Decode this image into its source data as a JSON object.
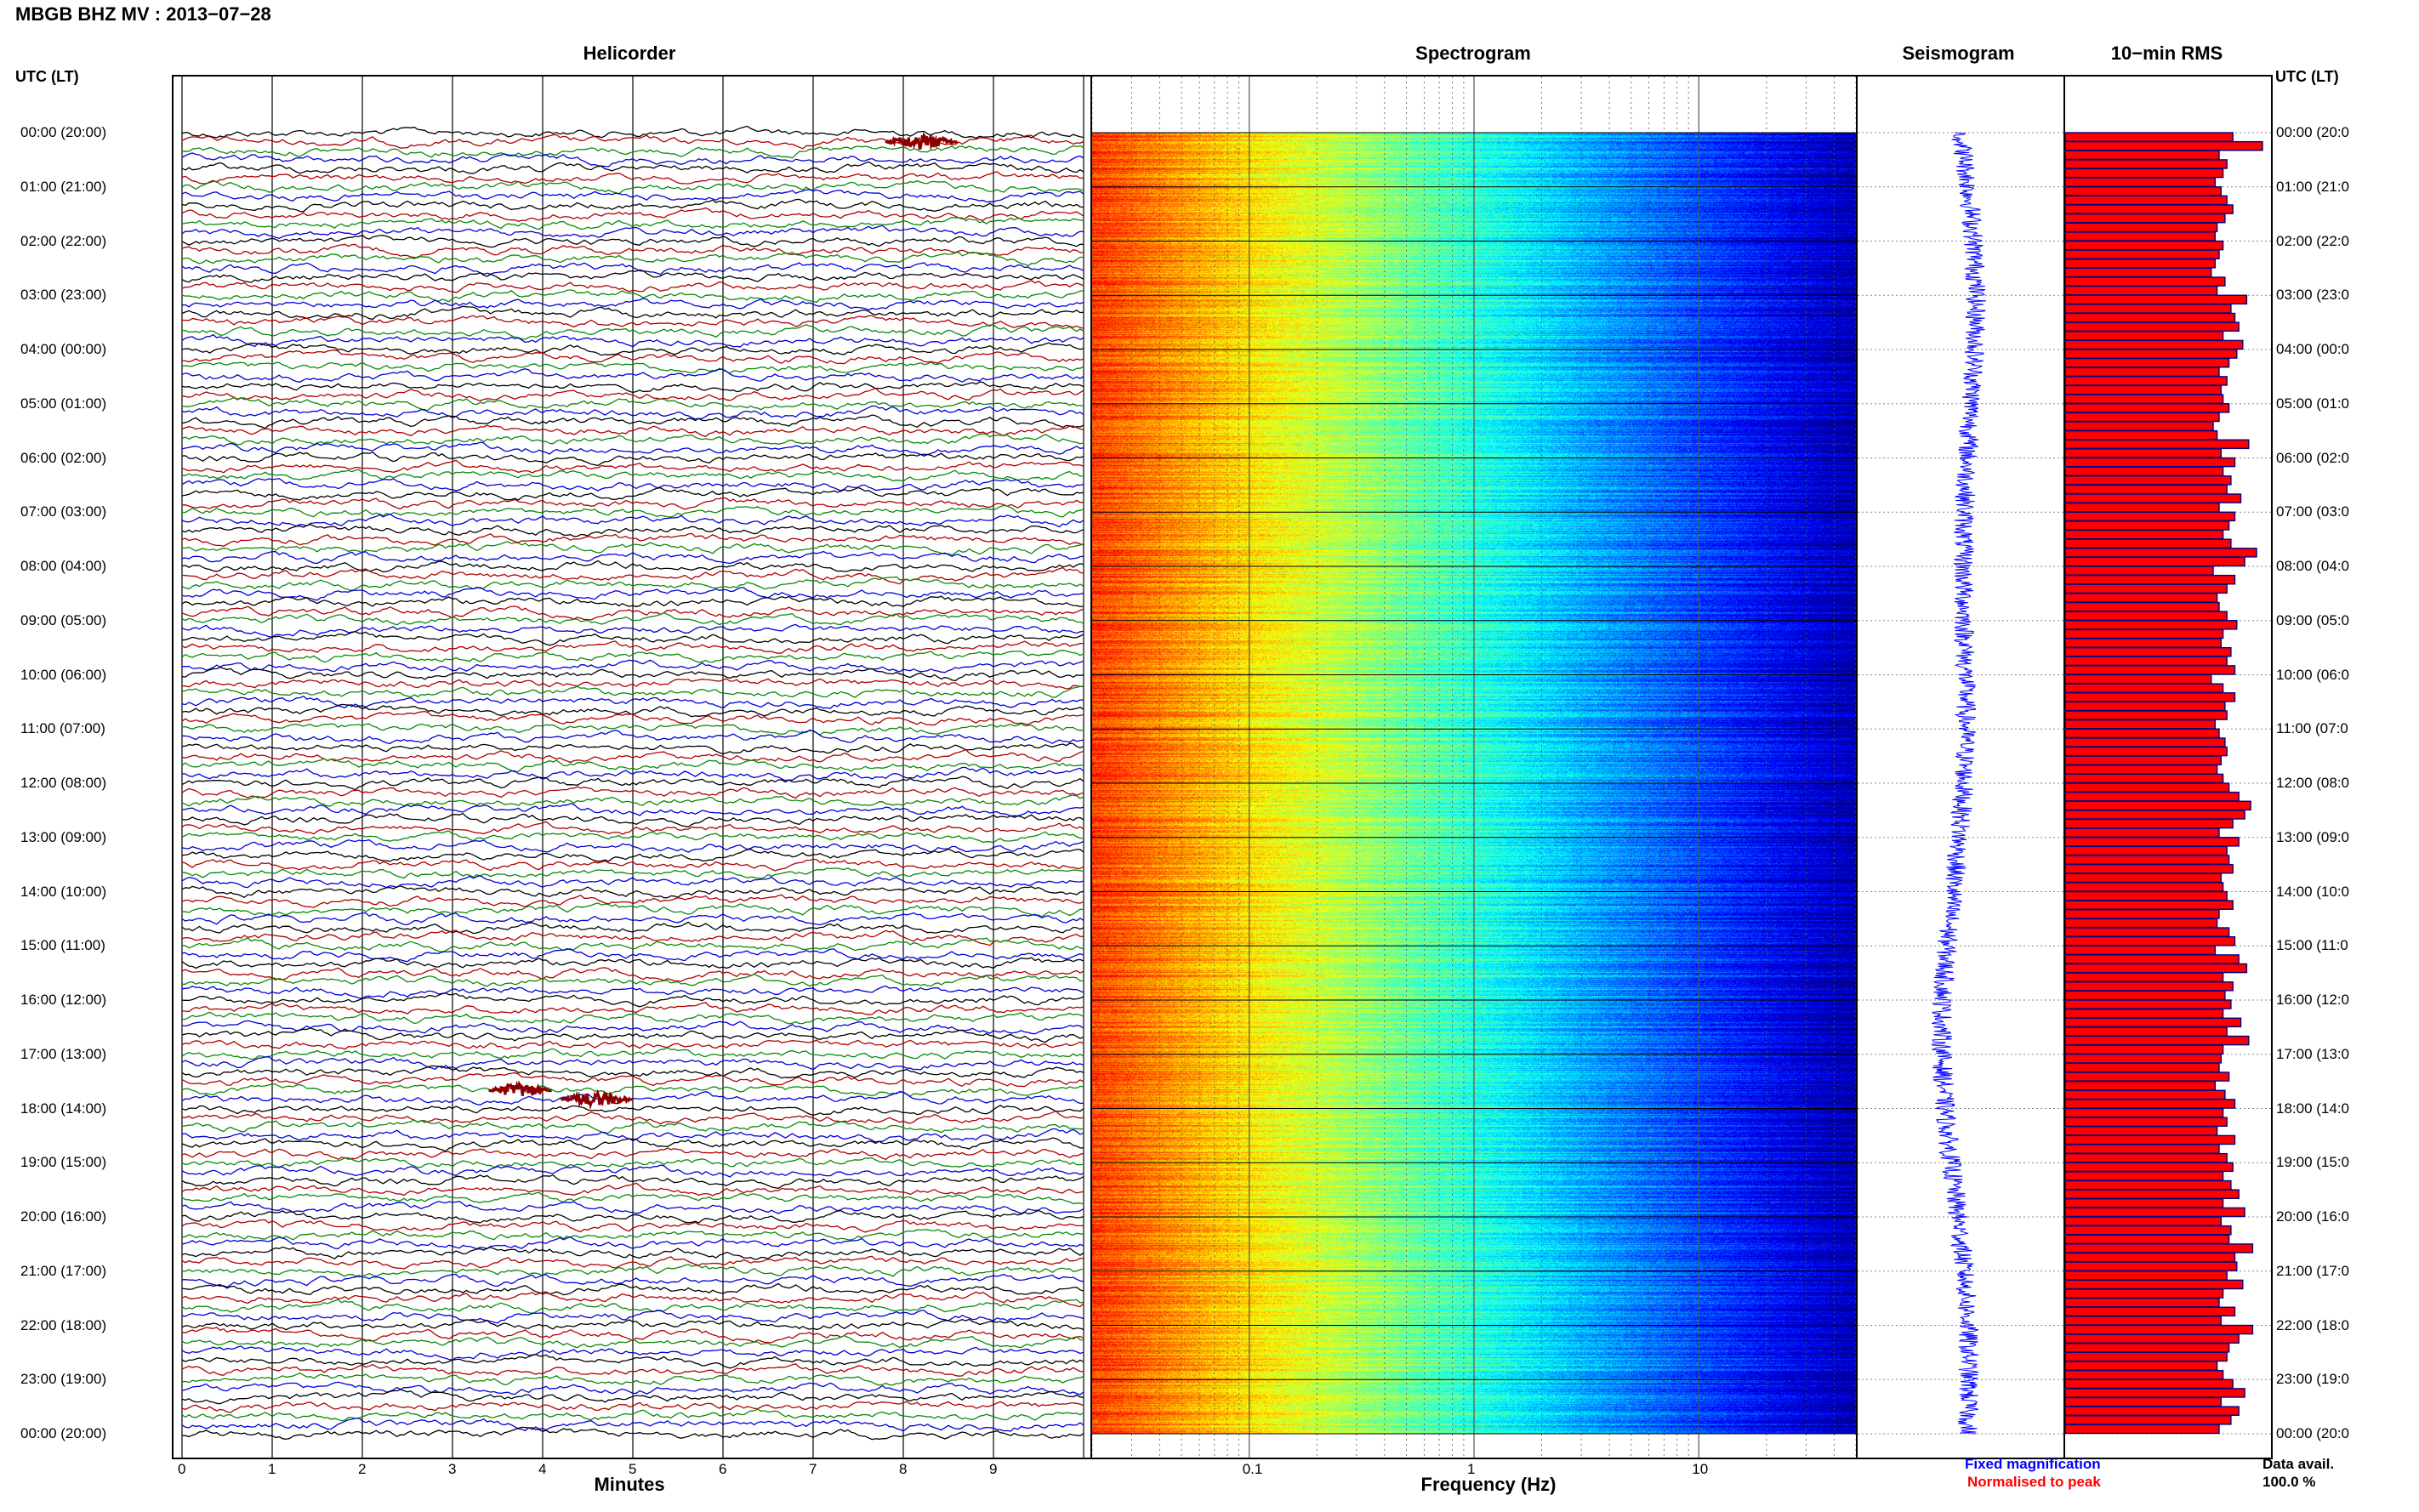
{
  "header": {
    "title": "MBGB BHZ MV : 2013−07−28",
    "time_axis_label": "UTC (LT)"
  },
  "panels": {
    "helicorder": {
      "title": "Helicorder",
      "xlabel": "Minutes"
    },
    "spectrogram": {
      "title": "Spectrogram",
      "xlabel": "Frequency (Hz)"
    },
    "seismogram": {
      "title": "Seismogram"
    },
    "rms": {
      "title": "10−min RMS"
    }
  },
  "legend": {
    "fixed_magnification": "Fixed magnification",
    "normalised_to_peak": "Normalised to peak",
    "data_avail_label": "Data avail.",
    "data_avail_value": "100.0 %"
  },
  "colors": {
    "trace_cycle": [
      "#000000",
      "#b00000",
      "#0a8a0a",
      "#0000d8"
    ],
    "event": "#8b0000",
    "seismogram": "#0000ff",
    "rms_fill": "#ff0000",
    "rms_border": "#000080",
    "legend_fixed": "#0000ff",
    "legend_normalised": "#ff0000"
  },
  "chart_data": [
    {
      "type": "line",
      "name_hint": "helicorder",
      "x_ticks": [
        "0",
        "1",
        "2",
        "3",
        "4",
        "5",
        "6",
        "7",
        "8",
        "9"
      ],
      "xlim": [
        0,
        10
      ],
      "row_labels_left": [
        "00:00 (20:00)",
        "01:00 (21:00)",
        "02:00 (22:00)",
        "03:00 (23:00)",
        "04:00 (00:00)",
        "05:00 (01:00)",
        "06:00 (02:00)",
        "07:00 (03:00)",
        "08:00 (04:00)",
        "09:00 (05:00)",
        "10:00 (06:00)",
        "11:00 (07:00)",
        "12:00 (08:00)",
        "13:00 (09:00)",
        "14:00 (10:00)",
        "15:00 (11:00)",
        "16:00 (12:00)",
        "17:00 (13:00)",
        "18:00 (14:00)",
        "19:00 (15:00)",
        "20:00 (16:00)",
        "21:00 (17:00)",
        "22:00 (18:00)",
        "23:00 (19:00)",
        "00:00 (20:00)"
      ],
      "traces_per_hour": 6,
      "events": [
        {
          "trace_index": 1,
          "start_min": 7.8,
          "end_min": 8.6
        },
        {
          "trace_index": 106,
          "start_min": 3.4,
          "end_min": 4.1
        },
        {
          "trace_index": 107,
          "start_min": 4.2,
          "end_min": 5.0
        }
      ]
    },
    {
      "type": "heatmap",
      "name_hint": "spectrogram",
      "x_scale": "log",
      "xlim": [
        0.02,
        50
      ],
      "x_ticks": [
        "0.1",
        "1",
        "10"
      ],
      "y_rows_hours": 24,
      "colormap": "jet"
    },
    {
      "type": "line",
      "name_hint": "seismogram",
      "row_labels_right": [
        "00:00 (20:0",
        "01:00 (21:0",
        "02:00 (22:0",
        "03:00 (23:0",
        "04:00 (00:0",
        "05:00 (01:0",
        "06:00 (02:0",
        "07:00 (03:0",
        "08:00 (04:0",
        "09:00 (05:0",
        "10:00 (06:0",
        "11:00 (07:0",
        "12:00 (08:0",
        "13:00 (09:0",
        "14:00 (10:0",
        "15:00 (11:0",
        "16:00 (12:0",
        "17:00 (13:0",
        "18:00 (14:0",
        "19:00 (15:0",
        "20:00 (16:0",
        "21:00 (17:0",
        "22:00 (18:0",
        "23:00 (19:0",
        "00:00 (20:0"
      ]
    },
    {
      "type": "bar",
      "name_hint": "10-min RMS",
      "orientation": "horizontal",
      "bars": 144,
      "values_normalised": [
        0.85,
        1.0,
        0.78,
        0.82,
        0.8,
        0.76,
        0.79,
        0.82,
        0.85,
        0.81,
        0.77,
        0.76,
        0.8,
        0.78,
        0.76,
        0.74,
        0.81,
        0.77,
        0.92,
        0.84,
        0.86,
        0.88,
        0.8,
        0.9,
        0.87,
        0.83,
        0.78,
        0.82,
        0.79,
        0.8,
        0.83,
        0.78,
        0.75,
        0.77,
        0.93,
        0.79,
        0.86,
        0.8,
        0.84,
        0.82,
        0.89,
        0.78,
        0.86,
        0.83,
        0.8,
        0.84,
        0.97,
        0.91,
        0.75,
        0.86,
        0.82,
        0.77,
        0.78,
        0.82,
        0.87,
        0.8,
        0.79,
        0.84,
        0.82,
        0.86,
        0.74,
        0.8,
        0.86,
        0.81,
        0.82,
        0.76,
        0.78,
        0.81,
        0.82,
        0.79,
        0.77,
        0.8,
        0.83,
        0.88,
        0.94,
        0.91,
        0.85,
        0.78,
        0.88,
        0.82,
        0.83,
        0.85,
        0.79,
        0.8,
        0.82,
        0.85,
        0.78,
        0.77,
        0.83,
        0.86,
        0.76,
        0.88,
        0.92,
        0.8,
        0.85,
        0.81,
        0.84,
        0.8,
        0.89,
        0.82,
        0.93,
        0.8,
        0.79,
        0.78,
        0.83,
        0.76,
        0.81,
        0.86,
        0.8,
        0.82,
        0.77,
        0.86,
        0.78,
        0.82,
        0.85,
        0.8,
        0.84,
        0.88,
        0.8,
        0.91,
        0.79,
        0.84,
        0.83,
        0.95,
        0.86,
        0.87,
        0.82,
        0.9,
        0.8,
        0.78,
        0.86,
        0.79,
        0.95,
        0.88,
        0.83,
        0.82,
        0.77,
        0.8,
        0.85,
        0.91,
        0.79,
        0.88,
        0.84,
        0.78
      ]
    }
  ]
}
